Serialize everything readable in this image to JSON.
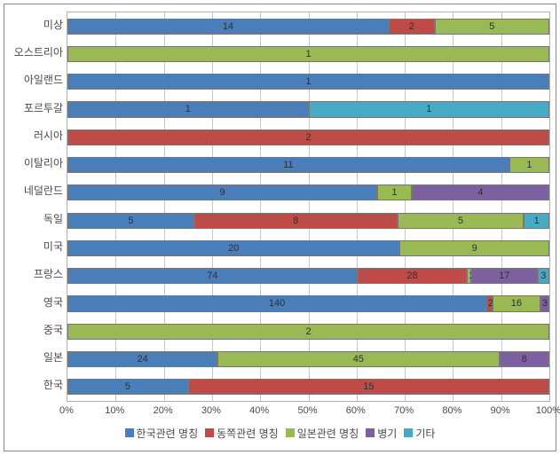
{
  "chart": {
    "type": "stacked-bar-horizontal-100pct",
    "background_color": "#ffffff",
    "border_color": "#888888",
    "plot_border_color": "#b0b0b0",
    "grid_color": "#c8c8c8",
    "label_color": "#4a4a4a",
    "label_fontsize": 12,
    "value_label_fontsize": 11,
    "bar_gap_ratio": 0.42,
    "series": [
      {
        "key": "s1",
        "label": "한국관련 명칭",
        "color": "#4a7ebb"
      },
      {
        "key": "s2",
        "label": "동쪽관련 명칭",
        "color": "#be4b48"
      },
      {
        "key": "s3",
        "label": "일본관련 명칭",
        "color": "#98b954"
      },
      {
        "key": "s4",
        "label": "병기",
        "color": "#7d60a0"
      },
      {
        "key": "s5",
        "label": "기타",
        "color": "#46aac5"
      }
    ],
    "categories": [
      {
        "label": "미상",
        "values": {
          "s1": 14,
          "s2": 2,
          "s3": 5,
          "s4": 0,
          "s5": 0
        }
      },
      {
        "label": "오스트리아",
        "values": {
          "s1": 0,
          "s2": 0,
          "s3": 1,
          "s4": 0,
          "s5": 0
        }
      },
      {
        "label": "아일랜드",
        "values": {
          "s1": 1,
          "s2": 0,
          "s3": 0,
          "s4": 0,
          "s5": 0
        }
      },
      {
        "label": "포르투갈",
        "values": {
          "s1": 1,
          "s2": 0,
          "s3": 0,
          "s4": 0,
          "s5": 1
        }
      },
      {
        "label": "러시아",
        "values": {
          "s1": 0,
          "s2": 2,
          "s3": 0,
          "s4": 0,
          "s5": 0
        }
      },
      {
        "label": "이탈리아",
        "values": {
          "s1": 11,
          "s2": 0,
          "s3": 1,
          "s4": 0,
          "s5": 0
        }
      },
      {
        "label": "네덜란드",
        "values": {
          "s1": 9,
          "s2": 0,
          "s3": 1,
          "s4": 4,
          "s5": 0
        }
      },
      {
        "label": "독일",
        "values": {
          "s1": 5,
          "s2": 8,
          "s3": 5,
          "s4": 0,
          "s5": 1
        }
      },
      {
        "label": "미국",
        "values": {
          "s1": 20,
          "s2": 0,
          "s3": 9,
          "s4": 0,
          "s5": 0
        }
      },
      {
        "label": "프랑스",
        "values": {
          "s1": 74,
          "s2": 28,
          "s3": 1,
          "s4": 17,
          "s5": 3
        }
      },
      {
        "label": "영국",
        "values": {
          "s1": 140,
          "s2": 2,
          "s3": 16,
          "s4": 3,
          "s5": 0
        }
      },
      {
        "label": "중국",
        "values": {
          "s1": 0,
          "s2": 0,
          "s3": 2,
          "s4": 0,
          "s5": 0
        }
      },
      {
        "label": "일본",
        "values": {
          "s1": 24,
          "s2": 0,
          "s3": 45,
          "s4": 8,
          "s5": 0
        }
      },
      {
        "label": "한국",
        "values": {
          "s1": 5,
          "s2": 15,
          "s3": 0,
          "s4": 0,
          "s5": 0
        }
      }
    ],
    "x_axis": {
      "min": 0,
      "max": 100,
      "tick_step": 10,
      "tick_suffix": "%",
      "ticks_labels": [
        "0%",
        "10%",
        "20%",
        "30%",
        "40%",
        "50%",
        "60%",
        "70%",
        "80%",
        "90%",
        "100%"
      ]
    }
  }
}
